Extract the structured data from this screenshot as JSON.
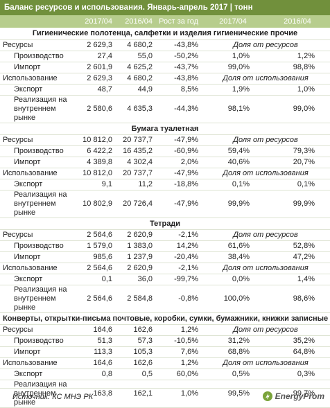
{
  "header": {
    "title": "Баланс ресурсов и использования. Январь-апрель 2017 | тонн"
  },
  "table": {
    "columns": [
      "2017/04",
      "2016/04",
      "Рост за год",
      "2017/04",
      "2016/04"
    ],
    "sections": [
      {
        "title": "Гигиенические полотенца, салфетки и изделия гигиенические прочие",
        "rows": [
          [
            "Ресурсы",
            "2 629,3",
            "4 680,2",
            "-43,8%",
            "Доля от ресурсов"
          ],
          [
            "Производство",
            "27,4",
            "55,0",
            "-50,2%",
            "1,0%",
            "1,2%"
          ],
          [
            "Импорт",
            "2 601,9",
            "4 625,2",
            "-43,7%",
            "99,0%",
            "98,8%"
          ],
          [
            "Использование",
            "2 629,3",
            "4 680,2",
            "-43,8%",
            "Доля от использования"
          ],
          [
            "Экспорт",
            "48,7",
            "44,9",
            "8,5%",
            "1,9%",
            "1,0%"
          ],
          [
            "Реализация на внутреннем рынке",
            "2 580,6",
            "4 635,3",
            "-44,3%",
            "98,1%",
            "99,0%"
          ]
        ]
      },
      {
        "title": "Бумага туалетная",
        "rows": [
          [
            "Ресурсы",
            "10 812,0",
            "20 737,7",
            "-47,9%",
            "Доля от ресурсов"
          ],
          [
            "Производство",
            "6 422,2",
            "16 435,2",
            "-60,9%",
            "59,4%",
            "79,3%"
          ],
          [
            "Импорт",
            "4 389,8",
            "4 302,4",
            "2,0%",
            "40,6%",
            "20,7%"
          ],
          [
            "Использование",
            "10 812,0",
            "20 737,7",
            "-47,9%",
            "Доля от использования"
          ],
          [
            "Экспорт",
            "9,1",
            "11,2",
            "-18,8%",
            "0,1%",
            "0,1%"
          ],
          [
            "Реализация на внутреннем рынке",
            "10 802,9",
            "20 726,4",
            "-47,9%",
            "99,9%",
            "99,9%"
          ]
        ]
      },
      {
        "title": "Тетради",
        "rows": [
          [
            "Ресурсы",
            "2 564,6",
            "2 620,9",
            "-2,1%",
            "Доля от ресурсов"
          ],
          [
            "Производство",
            "1 579,0",
            "1 383,0",
            "14,2%",
            "61,6%",
            "52,8%"
          ],
          [
            "Импорт",
            "985,6",
            "1 237,9",
            "-20,4%",
            "38,4%",
            "47,2%"
          ],
          [
            "Использование",
            "2 564,6",
            "2 620,9",
            "-2,1%",
            "Доля от использования"
          ],
          [
            "Экспорт",
            "0,1",
            "36,0",
            "-99,7%",
            "0,0%",
            "1,4%"
          ],
          [
            "Реализация на внутреннем рынке",
            "2 564,6",
            "2 584,8",
            "-0,8%",
            "100,0%",
            "98,6%"
          ]
        ]
      },
      {
        "title": "Конверты, открытки-письма почтовые, коробки, сумки, бумажники, книжки записные",
        "rows": [
          [
            "Ресурсы",
            "164,6",
            "162,6",
            "1,2%",
            "Доля от ресурсов"
          ],
          [
            "Производство",
            "51,3",
            "57,3",
            "-10,5%",
            "31,2%",
            "35,2%"
          ],
          [
            "Импорт",
            "113,3",
            "105,3",
            "7,6%",
            "68,8%",
            "64,8%"
          ],
          [
            "Использование",
            "164,6",
            "162,6",
            "1,2%",
            "Доля от использования"
          ],
          [
            "Экспорт",
            "0,8",
            "0,5",
            "60,0%",
            "0,5%",
            "0,3%"
          ],
          [
            "Реализация на внутреннем рынке",
            "163,8",
            "162,1",
            "1,0%",
            "99,5%",
            "99,7%"
          ]
        ]
      }
    ]
  },
  "footer": {
    "source": "Источник: КС МНЭ РК",
    "logo": "EnergyProm"
  }
}
